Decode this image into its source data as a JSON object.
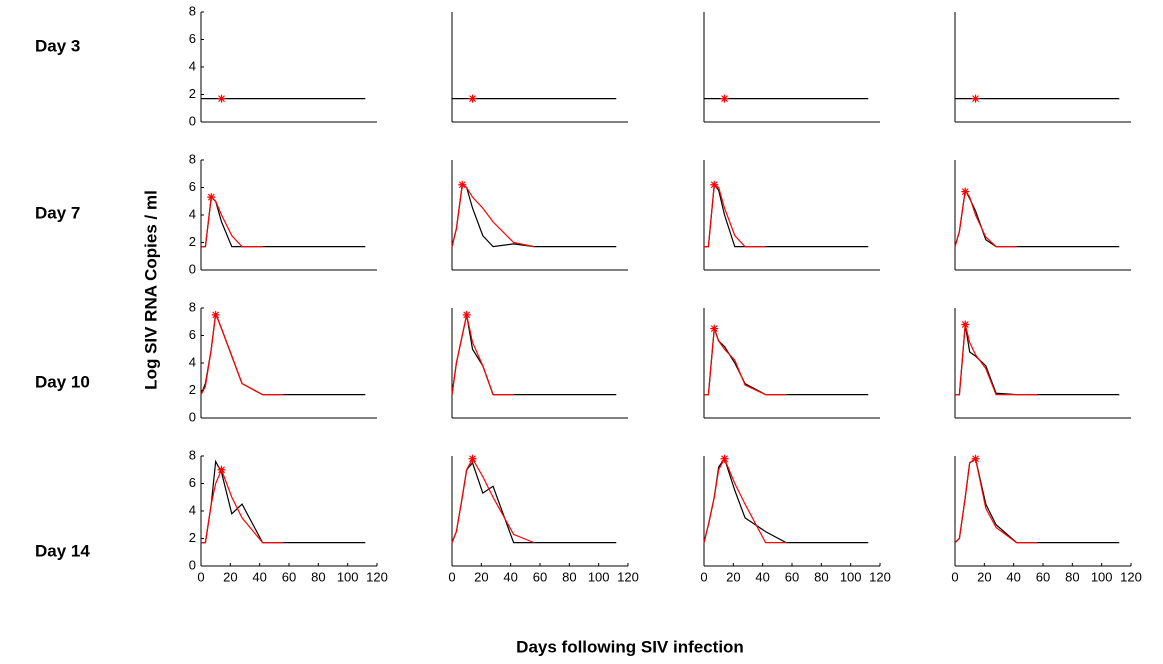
{
  "row_labels": [
    "Day 3",
    "Day 7",
    "Day 10",
    "Day 14"
  ],
  "y_label": "Log SIV RNA Copies / ml",
  "x_label": "Days following SIV infection",
  "chart_data": [
    {
      "type": "line",
      "xlim": [
        0,
        120
      ],
      "ylim": [
        0,
        8
      ],
      "yticks": [
        0,
        2,
        4,
        6,
        8
      ],
      "x": [
        0,
        3,
        7,
        10,
        14,
        21,
        28,
        42,
        56,
        112
      ],
      "series": [
        {
          "color": "#000000",
          "values": [
            1.7,
            1.7,
            1.7,
            1.7,
            1.7,
            1.7,
            1.7,
            1.7,
            1.7,
            1.7
          ]
        }
      ],
      "marker": {
        "color": "#ff0000",
        "x": 14,
        "y": 1.7
      }
    },
    {
      "type": "line",
      "xlim": [
        0,
        120
      ],
      "ylim": [
        0,
        8
      ],
      "x": [
        0,
        3,
        7,
        10,
        14,
        21,
        28,
        42,
        56,
        112
      ],
      "series": [
        {
          "color": "#000000",
          "values": [
            1.7,
            1.7,
            1.7,
            1.7,
            1.7,
            1.7,
            1.7,
            1.7,
            1.7,
            1.7
          ]
        }
      ],
      "marker": {
        "color": "#ff0000",
        "x": 14,
        "y": 1.7
      }
    },
    {
      "type": "line",
      "xlim": [
        0,
        120
      ],
      "ylim": [
        0,
        8
      ],
      "x": [
        0,
        3,
        7,
        10,
        14,
        21,
        28,
        42,
        56,
        112
      ],
      "series": [
        {
          "color": "#000000",
          "values": [
            1.7,
            1.7,
            1.7,
            1.7,
            1.7,
            1.7,
            1.7,
            1.7,
            1.7,
            1.7
          ]
        }
      ],
      "marker": {
        "color": "#ff0000",
        "x": 14,
        "y": 1.7
      }
    },
    {
      "type": "line",
      "xlim": [
        0,
        120
      ],
      "ylim": [
        0,
        8
      ],
      "x": [
        0,
        3,
        7,
        10,
        14,
        21,
        28,
        42,
        56,
        112
      ],
      "series": [
        {
          "color": "#000000",
          "values": [
            1.7,
            1.7,
            1.7,
            1.7,
            1.7,
            1.7,
            1.7,
            1.7,
            1.7,
            1.7
          ]
        }
      ],
      "marker": {
        "color": "#ff0000",
        "x": 14,
        "y": 1.7
      }
    },
    {
      "type": "line",
      "xlim": [
        0,
        120
      ],
      "ylim": [
        0,
        8
      ],
      "yticks": [
        0,
        2,
        4,
        6,
        8
      ],
      "x": [
        0,
        3,
        7,
        10,
        14,
        21,
        28,
        42,
        56,
        112
      ],
      "series": [
        {
          "color": "#000000",
          "values": [
            1.7,
            1.7,
            5.3,
            5.0,
            3.5,
            1.7,
            1.7,
            1.7,
            1.7,
            1.7
          ]
        },
        {
          "color": "#ff0000",
          "values": [
            1.7,
            1.7,
            5.3,
            5.0,
            4.0,
            2.5,
            1.7,
            1.7,
            null,
            null
          ]
        }
      ],
      "marker": {
        "color": "#ff0000",
        "x": 7,
        "y": 5.3
      }
    },
    {
      "type": "line",
      "xlim": [
        0,
        120
      ],
      "ylim": [
        0,
        8
      ],
      "x": [
        0,
        3,
        7,
        10,
        14,
        21,
        28,
        42,
        56,
        112
      ],
      "series": [
        {
          "color": "#000000",
          "values": [
            1.7,
            3,
            6.2,
            6.0,
            4.5,
            2.5,
            1.7,
            1.9,
            1.7,
            1.7
          ]
        },
        {
          "color": "#ff0000",
          "values": [
            1.7,
            3,
            6.2,
            6.0,
            5.3,
            4.5,
            3.5,
            2.0,
            1.7,
            null
          ]
        }
      ],
      "marker": {
        "color": "#ff0000",
        "x": 7,
        "y": 6.2
      }
    },
    {
      "type": "line",
      "xlim": [
        0,
        120
      ],
      "ylim": [
        0,
        8
      ],
      "x": [
        0,
        3,
        7,
        10,
        14,
        21,
        28,
        42,
        56,
        112
      ],
      "series": [
        {
          "color": "#000000",
          "values": [
            1.7,
            1.7,
            6.2,
            5.8,
            4.0,
            1.7,
            1.7,
            1.7,
            1.7,
            1.7
          ]
        },
        {
          "color": "#ff0000",
          "values": [
            1.7,
            1.7,
            6.2,
            6.0,
            4.5,
            2.5,
            1.7,
            1.7,
            null,
            null
          ]
        }
      ],
      "marker": {
        "color": "#ff0000",
        "x": 7,
        "y": 6.2
      }
    },
    {
      "type": "line",
      "xlim": [
        0,
        120
      ],
      "ylim": [
        0,
        8
      ],
      "x": [
        0,
        3,
        7,
        10,
        14,
        21,
        28,
        42,
        56,
        112
      ],
      "series": [
        {
          "color": "#000000",
          "values": [
            1.7,
            2.8,
            5.8,
            5.2,
            4.3,
            2.2,
            1.7,
            1.7,
            1.7,
            1.7
          ]
        },
        {
          "color": "#ff0000",
          "values": [
            1.7,
            2.8,
            5.8,
            5.3,
            4.0,
            2.4,
            1.7,
            1.7,
            null,
            null
          ]
        }
      ],
      "marker": {
        "color": "#ff0000",
        "x": 7,
        "y": 5.7
      }
    },
    {
      "type": "line",
      "xlim": [
        0,
        120
      ],
      "ylim": [
        0,
        8
      ],
      "yticks": [
        0,
        2,
        4,
        6,
        8
      ],
      "x": [
        0,
        3,
        7,
        10,
        14,
        21,
        28,
        42,
        56,
        112
      ],
      "series": [
        {
          "color": "#000000",
          "values": [
            1.7,
            2.5,
            5,
            7.6,
            6.5,
            4.5,
            2.5,
            1.7,
            1.7,
            1.7
          ]
        },
        {
          "color": "#ff0000",
          "values": [
            1.7,
            2.3,
            5,
            7.6,
            6.5,
            4.5,
            2.5,
            1.7,
            1.7,
            null
          ]
        }
      ],
      "marker": {
        "color": "#ff0000",
        "x": 10,
        "y": 7.5
      }
    },
    {
      "type": "line",
      "xlim": [
        0,
        120
      ],
      "ylim": [
        0,
        8
      ],
      "x": [
        0,
        3,
        7,
        10,
        14,
        21,
        28,
        42,
        56,
        112
      ],
      "series": [
        {
          "color": "#000000",
          "values": [
            1.7,
            4,
            6,
            7.5,
            5.0,
            3.8,
            1.7,
            1.7,
            1.7,
            1.7
          ]
        },
        {
          "color": "#ff0000",
          "values": [
            1.7,
            4,
            6,
            7.5,
            5.5,
            3.8,
            1.7,
            1.7,
            null,
            null
          ]
        }
      ],
      "marker": {
        "color": "#ff0000",
        "x": 10,
        "y": 7.5
      }
    },
    {
      "type": "line",
      "xlim": [
        0,
        120
      ],
      "ylim": [
        0,
        8
      ],
      "x": [
        0,
        3,
        7,
        10,
        14,
        21,
        28,
        42,
        56,
        112
      ],
      "series": [
        {
          "color": "#000000",
          "values": [
            1.7,
            1.7,
            6.5,
            5.6,
            5.2,
            4.0,
            2.5,
            1.7,
            1.7,
            1.7
          ]
        },
        {
          "color": "#ff0000",
          "values": [
            1.7,
            1.7,
            6.5,
            5.6,
            5.0,
            4.2,
            2.4,
            1.7,
            1.7,
            null
          ]
        }
      ],
      "marker": {
        "color": "#ff0000",
        "x": 7,
        "y": 6.5
      }
    },
    {
      "type": "line",
      "xlim": [
        0,
        120
      ],
      "ylim": [
        0,
        8
      ],
      "x": [
        0,
        3,
        7,
        10,
        14,
        21,
        28,
        42,
        56,
        112
      ],
      "series": [
        {
          "color": "#000000",
          "values": [
            1.7,
            1.7,
            6.8,
            4.8,
            4.5,
            3.8,
            1.8,
            1.7,
            1.7,
            1.7
          ]
        },
        {
          "color": "#ff0000",
          "values": [
            1.7,
            1.7,
            6.8,
            5.5,
            4.6,
            3.6,
            1.7,
            1.7,
            1.7,
            null
          ]
        }
      ],
      "marker": {
        "color": "#ff0000",
        "x": 7,
        "y": 6.8
      }
    },
    {
      "type": "line",
      "xlim": [
        0,
        120
      ],
      "ylim": [
        0,
        8
      ],
      "yticks": [
        0,
        2,
        4,
        6,
        8
      ],
      "xticks": [
        0,
        20,
        40,
        60,
        80,
        100,
        120
      ],
      "x": [
        0,
        3,
        7,
        10,
        14,
        21,
        28,
        42,
        56,
        112
      ],
      "series": [
        {
          "color": "#000000",
          "values": [
            1.7,
            1.7,
            4.5,
            7.6,
            6.8,
            3.8,
            4.5,
            1.7,
            1.7,
            1.7
          ]
        },
        {
          "color": "#ff0000",
          "values": [
            1.7,
            1.7,
            4.5,
            6.0,
            7.0,
            5.0,
            3.5,
            1.7,
            1.7,
            null
          ]
        }
      ],
      "marker": {
        "color": "#ff0000",
        "x": 14,
        "y": 7.0
      }
    },
    {
      "type": "line",
      "xlim": [
        0,
        120
      ],
      "ylim": [
        0,
        8
      ],
      "xticks": [
        0,
        20,
        40,
        60,
        80,
        100,
        120
      ],
      "x": [
        0,
        3,
        7,
        10,
        14,
        21,
        28,
        42,
        56,
        112
      ],
      "series": [
        {
          "color": "#000000",
          "values": [
            1.7,
            2.5,
            5,
            7,
            7.5,
            5.3,
            5.8,
            1.7,
            1.7,
            1.7
          ]
        },
        {
          "color": "#ff0000",
          "values": [
            1.7,
            2.5,
            5,
            7,
            7.8,
            6.5,
            5.0,
            2.3,
            1.7,
            null
          ]
        }
      ],
      "marker": {
        "color": "#ff0000",
        "x": 14,
        "y": 7.8
      }
    },
    {
      "type": "line",
      "xlim": [
        0,
        120
      ],
      "ylim": [
        0,
        8
      ],
      "xticks": [
        0,
        20,
        40,
        60,
        80,
        100,
        120
      ],
      "x": [
        0,
        3,
        7,
        10,
        14,
        21,
        28,
        42,
        56,
        112
      ],
      "series": [
        {
          "color": "#000000",
          "values": [
            1.7,
            3,
            5,
            7.2,
            7.8,
            5.5,
            3.5,
            2.5,
            1.7,
            1.7
          ]
        },
        {
          "color": "#ff0000",
          "values": [
            1.7,
            3,
            5,
            7,
            7.8,
            6,
            4.5,
            1.7,
            1.7,
            null
          ]
        }
      ],
      "marker": {
        "color": "#ff0000",
        "x": 14,
        "y": 7.8
      }
    },
    {
      "type": "line",
      "xlim": [
        0,
        120
      ],
      "ylim": [
        0,
        8
      ],
      "xticks": [
        0,
        20,
        40,
        60,
        80,
        100,
        120
      ],
      "x": [
        0,
        3,
        7,
        10,
        14,
        21,
        28,
        42,
        56,
        112
      ],
      "series": [
        {
          "color": "#000000",
          "values": [
            1.7,
            2,
            5,
            7.5,
            7.8,
            4.5,
            3.0,
            1.7,
            1.7,
            1.7
          ]
        },
        {
          "color": "#ff0000",
          "values": [
            1.7,
            2,
            5,
            7.5,
            7.8,
            4.2,
            2.8,
            1.7,
            1.7,
            null
          ]
        }
      ],
      "marker": {
        "color": "#ff0000",
        "x": 14,
        "y": 7.8
      }
    }
  ]
}
